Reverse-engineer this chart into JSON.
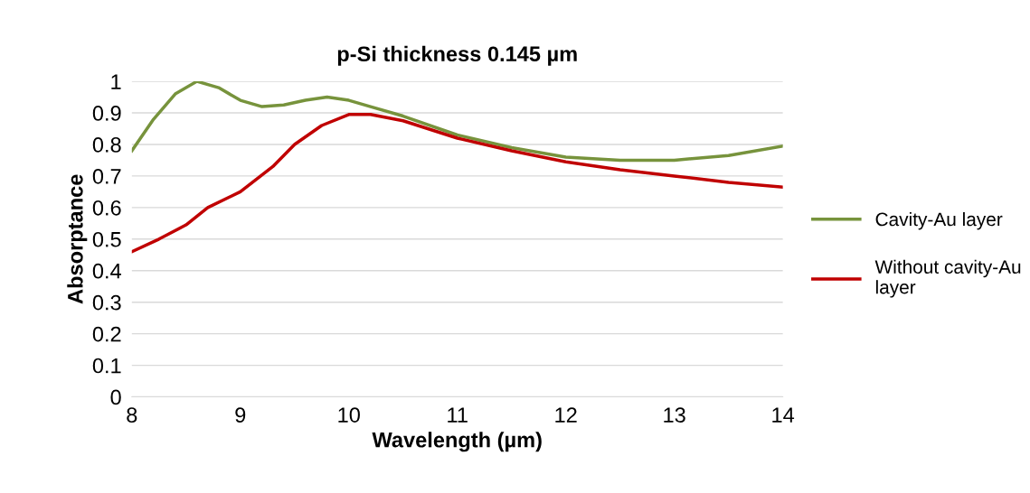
{
  "chart_data": {
    "type": "line",
    "title": "p-Si thickness 0.145 µm",
    "xlabel": "Wavelength (µm)",
    "ylabel": "Absorptance",
    "xlim": [
      8,
      14
    ],
    "xticks": [
      8,
      9,
      10,
      11,
      12,
      13,
      14
    ],
    "ylim": [
      0,
      1
    ],
    "yticks": [
      0,
      {
        "value": 0.1,
        "label": "0.1"
      },
      {
        "value": 0.2,
        "label": "0.2"
      },
      {
        "value": 0.3,
        "label": "0.3"
      },
      {
        "value": 0.4,
        "label": "0.4"
      },
      {
        "value": 0.5,
        "label": "0.5"
      },
      {
        "value": 0.6,
        "label": "0.6"
      },
      {
        "value": 0.7,
        "label": "0.7"
      },
      {
        "value": 0.8,
        "label": "0.8"
      },
      {
        "value": 0.9,
        "label": "0.9"
      },
      1
    ],
    "grid": "y",
    "legend": "right",
    "marker": "none",
    "line_style": "solid",
    "series": [
      {
        "name": "Cavity-Au layer",
        "color": "#77933c",
        "x": [
          8,
          8.2,
          8.4,
          8.6,
          8.8,
          9.0,
          9.2,
          9.4,
          9.6,
          9.8,
          10,
          10.2,
          10.5,
          11,
          11.5,
          12,
          12.5,
          13,
          13.5,
          14
        ],
        "values": [
          0.78,
          0.88,
          0.96,
          1.0,
          0.98,
          0.94,
          0.92,
          0.925,
          0.94,
          0.95,
          0.94,
          0.92,
          0.89,
          0.83,
          0.79,
          0.76,
          0.75,
          0.75,
          0.765,
          0.795
        ]
      },
      {
        "name": "Without cavity-Au layer",
        "color": "#c00000",
        "x": [
          8,
          8.25,
          8.5,
          8.7,
          9.0,
          9.3,
          9.5,
          9.75,
          10,
          10.2,
          10.5,
          11,
          11.5,
          12,
          12.5,
          13,
          13.5,
          14
        ],
        "values": [
          0.46,
          0.5,
          0.545,
          0.6,
          0.65,
          0.73,
          0.8,
          0.86,
          0.895,
          0.895,
          0.875,
          0.82,
          0.78,
          0.745,
          0.72,
          0.7,
          0.68,
          0.665
        ]
      }
    ]
  }
}
